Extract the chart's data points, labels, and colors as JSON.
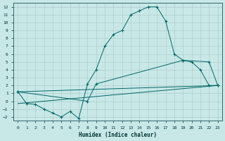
{
  "title": "",
  "xlabel": "Humidex (Indice chaleur)",
  "bg_color": "#c8e8e8",
  "grid_color": "#b0cccc",
  "line_color": "#006666",
  "xlim": [
    -0.5,
    23.5
  ],
  "ylim": [
    -2.5,
    12.5
  ],
  "xticks": [
    0,
    1,
    2,
    3,
    4,
    5,
    6,
    7,
    8,
    9,
    10,
    11,
    12,
    13,
    14,
    15,
    16,
    17,
    18,
    19,
    20,
    21,
    22,
    23
  ],
  "yticks": [
    -2,
    -1,
    0,
    1,
    2,
    3,
    4,
    5,
    6,
    7,
    8,
    9,
    10,
    11,
    12
  ],
  "line1_x": [
    0,
    1,
    2,
    3,
    4,
    5,
    6,
    7,
    8,
    9,
    10,
    11,
    12,
    13,
    14,
    15,
    16,
    17,
    18,
    19,
    20,
    21,
    22,
    23
  ],
  "line1_y": [
    1.2,
    -0.3,
    -0.4,
    -1.0,
    -1.5,
    -2.0,
    -1.3,
    -2.2,
    2.2,
    4.0,
    7.0,
    8.5,
    9.0,
    11.0,
    11.5,
    12.0,
    12.0,
    10.2,
    6.0,
    5.2,
    5.0,
    4.0,
    2.0,
    2.0
  ],
  "line2_x": [
    0,
    23
  ],
  "line2_y": [
    1.2,
    2.0
  ],
  "line3_x": [
    0,
    8,
    9,
    19,
    22,
    23
  ],
  "line3_y": [
    1.2,
    0.0,
    2.2,
    5.2,
    5.0,
    2.0
  ],
  "line4_x": [
    0,
    23
  ],
  "line4_y": [
    -0.3,
    2.0
  ]
}
